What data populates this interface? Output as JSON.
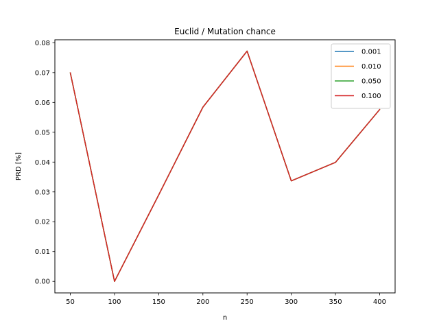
{
  "chart_data": {
    "type": "line",
    "title": "Euclid / Mutation chance",
    "xlabel": "n",
    "ylabel": "PRD [%]",
    "x": [
      50,
      100,
      150,
      200,
      250,
      300,
      350,
      400
    ],
    "xlim": [
      32.5,
      417.5
    ],
    "ylim": [
      -0.00386,
      0.081
    ],
    "xticks": [
      50,
      100,
      150,
      200,
      250,
      300,
      350,
      400
    ],
    "xtick_labels": [
      "50",
      "100",
      "150",
      "200",
      "250",
      "300",
      "350",
      "400"
    ],
    "yticks": [
      0,
      0.01,
      0.02,
      0.03,
      0.04,
      0.05,
      0.06,
      0.07,
      0.08
    ],
    "ytick_labels": [
      "0.00",
      "0.01",
      "0.02",
      "0.03",
      "0.04",
      "0.05",
      "0.06",
      "0.07",
      "0.08"
    ],
    "grid": false,
    "legend_position": "top-right",
    "series": [
      {
        "name": "0.001",
        "color": "#1f77b4",
        "values": [
          0.0699,
          0.0,
          0.029,
          0.0584,
          0.0772,
          0.0337,
          0.0399,
          0.0576
        ]
      },
      {
        "name": "0.010",
        "color": "#ff7f0e",
        "values": [
          0.0699,
          0.0,
          0.029,
          0.0584,
          0.0772,
          0.0337,
          0.0399,
          0.0576
        ]
      },
      {
        "name": "0.050",
        "color": "#2ca02c",
        "values": [
          0.0699,
          0.0,
          0.029,
          0.0584,
          0.0772,
          0.0337,
          0.0399,
          0.0576
        ]
      },
      {
        "name": "0.100",
        "color": "#d62728",
        "values": [
          0.0699,
          0.0,
          0.029,
          0.0584,
          0.0772,
          0.0337,
          0.0399,
          0.0576
        ]
      }
    ]
  }
}
